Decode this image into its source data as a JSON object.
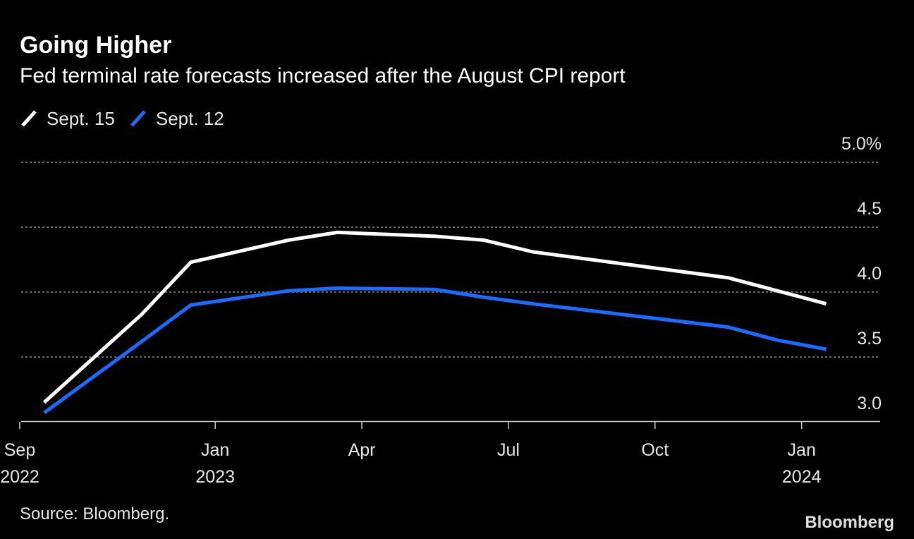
{
  "chart_data": {
    "type": "line",
    "title": "Going Higher",
    "subtitle": "Fed terminal rate forecasts increased after the August CPI report",
    "source": "Source: Bloomberg.",
    "brand": "Bloomberg",
    "x": [
      "2022-09",
      "2022-11",
      "2022-12",
      "2023-02",
      "2023-03",
      "2023-05",
      "2023-06",
      "2023-07",
      "2023-09",
      "2023-11",
      "2023-12",
      "2024-01"
    ],
    "series": [
      {
        "name": "Sept. 15",
        "color": "#ffffff",
        "values": [
          3.15,
          3.83,
          4.23,
          4.4,
          4.46,
          4.43,
          4.4,
          4.31,
          4.21,
          4.11,
          4.01,
          3.91
        ]
      },
      {
        "name": "Sept. 12",
        "color": "#1a6bff",
        "values": [
          3.07,
          3.62,
          3.9,
          4.01,
          4.03,
          4.02,
          3.96,
          3.91,
          3.82,
          3.73,
          3.63,
          3.56
        ]
      }
    ],
    "xlim": [
      "2022-09",
      "2024-02"
    ],
    "xticks": [
      {
        "value": "2022-09",
        "label": "Sep",
        "year": "2022"
      },
      {
        "value": "2023-01",
        "label": "Jan",
        "year": "2023"
      },
      {
        "value": "2023-04",
        "label": "Apr"
      },
      {
        "value": "2023-07",
        "label": "Jul"
      },
      {
        "value": "2023-10",
        "label": "Oct"
      },
      {
        "value": "2024-01",
        "label": "Jan",
        "year": "2024"
      }
    ],
    "ylim": [
      3.0,
      5.0
    ],
    "yticks": [
      {
        "value": 3.0,
        "label": "3.0"
      },
      {
        "value": 3.5,
        "label": "3.5"
      },
      {
        "value": 4.0,
        "label": "4.0"
      },
      {
        "value": 4.5,
        "label": "4.5"
      },
      {
        "value": 5.0,
        "label": "5.0%"
      }
    ],
    "grid": true
  }
}
